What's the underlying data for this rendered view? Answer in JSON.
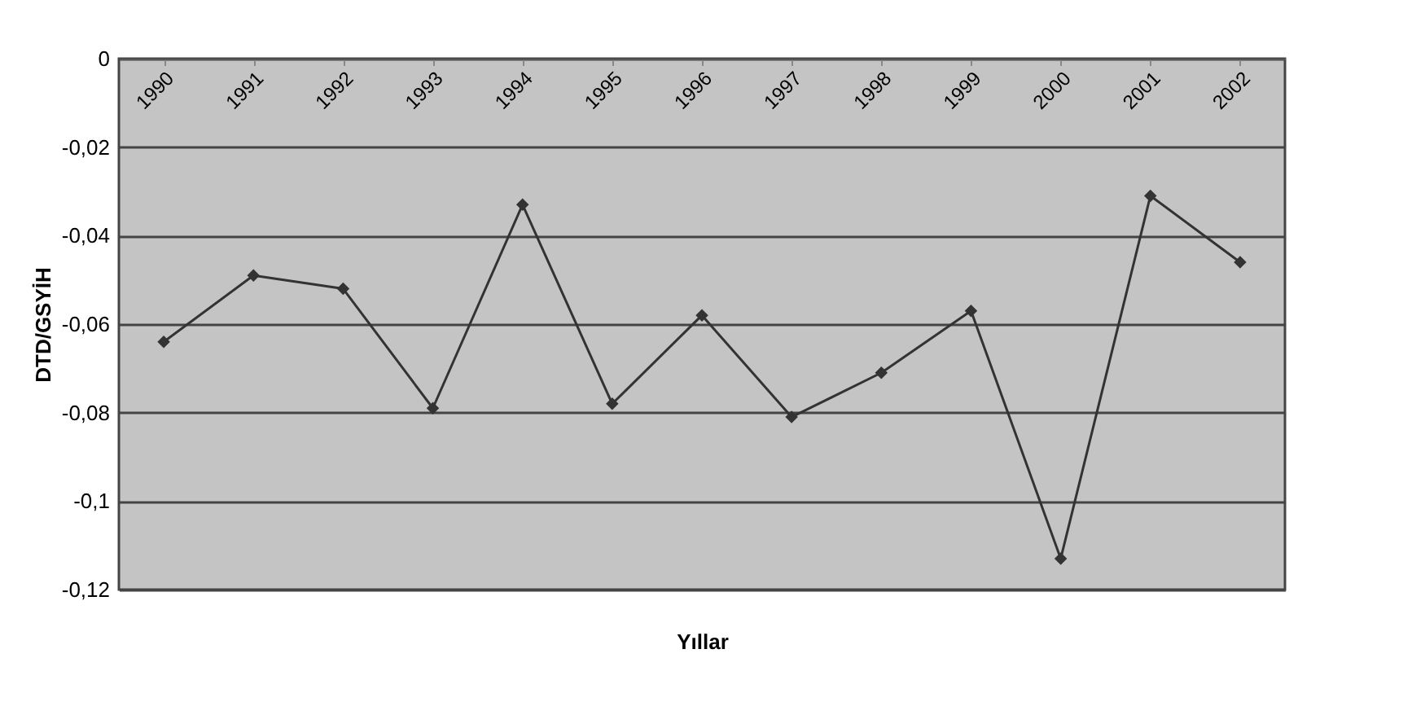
{
  "chart_data": {
    "type": "line",
    "xlabel": "Yıllar",
    "ylabel": "DTD/GSYİH",
    "categories": [
      "1990",
      "1991",
      "1992",
      "1993",
      "1994",
      "1995",
      "1996",
      "1997",
      "1998",
      "1999",
      "2000",
      "2001",
      "2002"
    ],
    "series": [
      {
        "color": "#333333",
        "values": [
          -0.064,
          -0.049,
          -0.052,
          -0.079,
          -0.033,
          -0.078,
          -0.058,
          -0.081,
          -0.071,
          -0.057,
          -0.113,
          -0.031,
          -0.046
        ]
      }
    ],
    "ylim": [
      -0.12,
      0
    ],
    "yticks": [
      0,
      {
        "value": -0.02,
        "label": "-0,02"
      },
      {
        "value": -0.04,
        "label": "-0,04"
      },
      {
        "value": -0.06,
        "label": "-0,06"
      },
      {
        "value": -0.08,
        "label": "-0,08"
      },
      {
        "value": -0.1,
        "label": "-0,1"
      },
      {
        "value": -0.12,
        "label": "-0,12"
      }
    ],
    "grid": "y",
    "marker": "diamond",
    "line_style": "solid"
  }
}
